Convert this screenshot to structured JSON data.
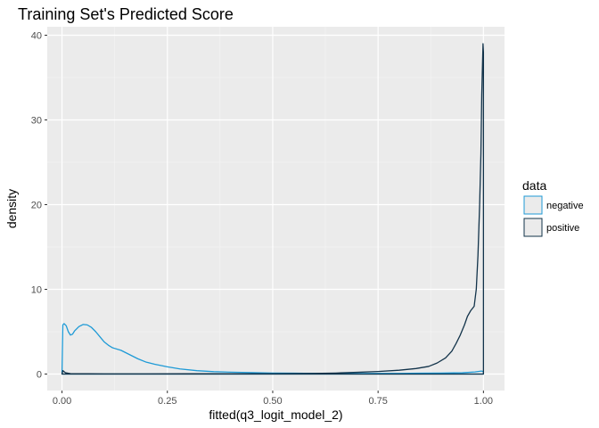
{
  "chart_data": {
    "type": "area",
    "title": "Training Set's Predicted Score",
    "xlabel": "fitted(q3_logit_model_2)",
    "ylabel": "density",
    "xlim": [
      -0.035,
      1.05
    ],
    "ylim": [
      -1.95,
      41
    ],
    "x_ticks": [
      0,
      0.25,
      0.5,
      0.75,
      1
    ],
    "x_tick_labels": [
      "0.00",
      "0.25",
      "0.50",
      "0.75",
      "1.00"
    ],
    "y_ticks": [
      0,
      10,
      20,
      30,
      40
    ],
    "y_tick_labels": [
      "0",
      "10",
      "20",
      "30",
      "40"
    ],
    "grid": true,
    "legend": {
      "title": "data",
      "position": "right"
    },
    "series": [
      {
        "name": "negative",
        "color": "#1e9ad6",
        "points": [
          [
            0,
            0
          ],
          [
            0.002,
            5.8
          ],
          [
            0.005,
            5.95
          ],
          [
            0.01,
            5.7
          ],
          [
            0.015,
            5.0
          ],
          [
            0.02,
            4.6
          ],
          [
            0.025,
            4.7
          ],
          [
            0.03,
            5.1
          ],
          [
            0.04,
            5.6
          ],
          [
            0.05,
            5.85
          ],
          [
            0.06,
            5.8
          ],
          [
            0.07,
            5.5
          ],
          [
            0.08,
            5.0
          ],
          [
            0.09,
            4.4
          ],
          [
            0.1,
            3.8
          ],
          [
            0.11,
            3.4
          ],
          [
            0.12,
            3.1
          ],
          [
            0.14,
            2.8
          ],
          [
            0.16,
            2.3
          ],
          [
            0.18,
            1.8
          ],
          [
            0.2,
            1.4
          ],
          [
            0.22,
            1.15
          ],
          [
            0.25,
            0.85
          ],
          [
            0.28,
            0.6
          ],
          [
            0.32,
            0.4
          ],
          [
            0.36,
            0.28
          ],
          [
            0.4,
            0.22
          ],
          [
            0.44,
            0.18
          ],
          [
            0.5,
            0.12
          ],
          [
            0.55,
            0.1
          ],
          [
            0.6,
            0.08
          ],
          [
            0.65,
            0.06
          ],
          [
            0.7,
            0.06
          ],
          [
            0.75,
            0.07
          ],
          [
            0.8,
            0.08
          ],
          [
            0.85,
            0.1
          ],
          [
            0.9,
            0.12
          ],
          [
            0.95,
            0.15
          ],
          [
            0.98,
            0.25
          ],
          [
            0.995,
            0.35
          ],
          [
            1.0,
            0.3
          ],
          [
            1.0,
            0
          ]
        ]
      },
      {
        "name": "positive",
        "color": "#12334a",
        "points": [
          [
            0,
            0
          ],
          [
            0.002,
            0.4
          ],
          [
            0.008,
            0.15
          ],
          [
            0.02,
            0.05
          ],
          [
            0.1,
            0.02
          ],
          [
            0.2,
            0.02
          ],
          [
            0.3,
            0.03
          ],
          [
            0.4,
            0.03
          ],
          [
            0.5,
            0.04
          ],
          [
            0.6,
            0.08
          ],
          [
            0.65,
            0.12
          ],
          [
            0.7,
            0.2
          ],
          [
            0.75,
            0.3
          ],
          [
            0.8,
            0.45
          ],
          [
            0.84,
            0.65
          ],
          [
            0.87,
            0.9
          ],
          [
            0.89,
            1.3
          ],
          [
            0.91,
            1.9
          ],
          [
            0.925,
            2.7
          ],
          [
            0.935,
            3.6
          ],
          [
            0.945,
            4.6
          ],
          [
            0.955,
            5.8
          ],
          [
            0.962,
            6.8
          ],
          [
            0.97,
            7.5
          ],
          [
            0.978,
            8.0
          ],
          [
            0.983,
            10
          ],
          [
            0.987,
            14
          ],
          [
            0.991,
            20
          ],
          [
            0.994,
            26
          ],
          [
            0.996,
            33
          ],
          [
            0.998,
            37
          ],
          [
            0.999,
            39
          ],
          [
            1.0,
            38
          ],
          [
            1.0,
            0
          ]
        ]
      }
    ]
  }
}
